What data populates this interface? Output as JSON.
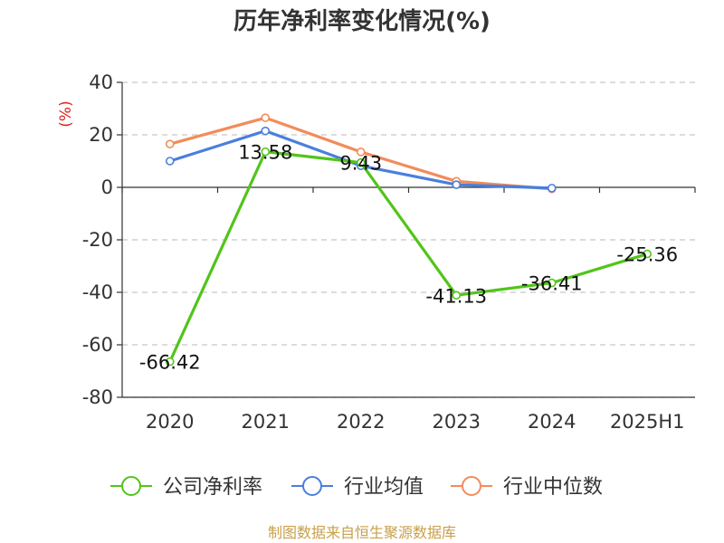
{
  "chart_data": {
    "type": "line",
    "title": "历年净利率变化情况(%)",
    "ylabel": "(%)",
    "xlabel": "",
    "categories": [
      "2020",
      "2021",
      "2022",
      "2023",
      "2024",
      "2025H1"
    ],
    "ylim": [
      -80,
      40
    ],
    "yticks": [
      40,
      20,
      0,
      -20,
      -40,
      -60,
      -80
    ],
    "grid": true,
    "legend_position": "bottom",
    "series": [
      {
        "name": "公司净利率",
        "color": "#52c41a",
        "values": [
          -66.42,
          13.58,
          9.43,
          -41.13,
          -36.41,
          -25.36
        ],
        "labels": [
          "-66.42",
          "13.58",
          "9.43",
          "-41.13",
          "-36.41",
          "-25.36"
        ]
      },
      {
        "name": "行业均值",
        "color": "#4a7fdc",
        "values": [
          10.0,
          21.5,
          8.2,
          1.0,
          -0.3,
          null
        ]
      },
      {
        "name": "行业中位数",
        "color": "#f28c5a",
        "values": [
          16.5,
          26.5,
          13.5,
          2.3,
          -0.6,
          null
        ]
      }
    ],
    "source": "制图数据来自恒生聚源数据库",
    "source_color": "#c8a04a",
    "unit_color": "#e02020"
  }
}
